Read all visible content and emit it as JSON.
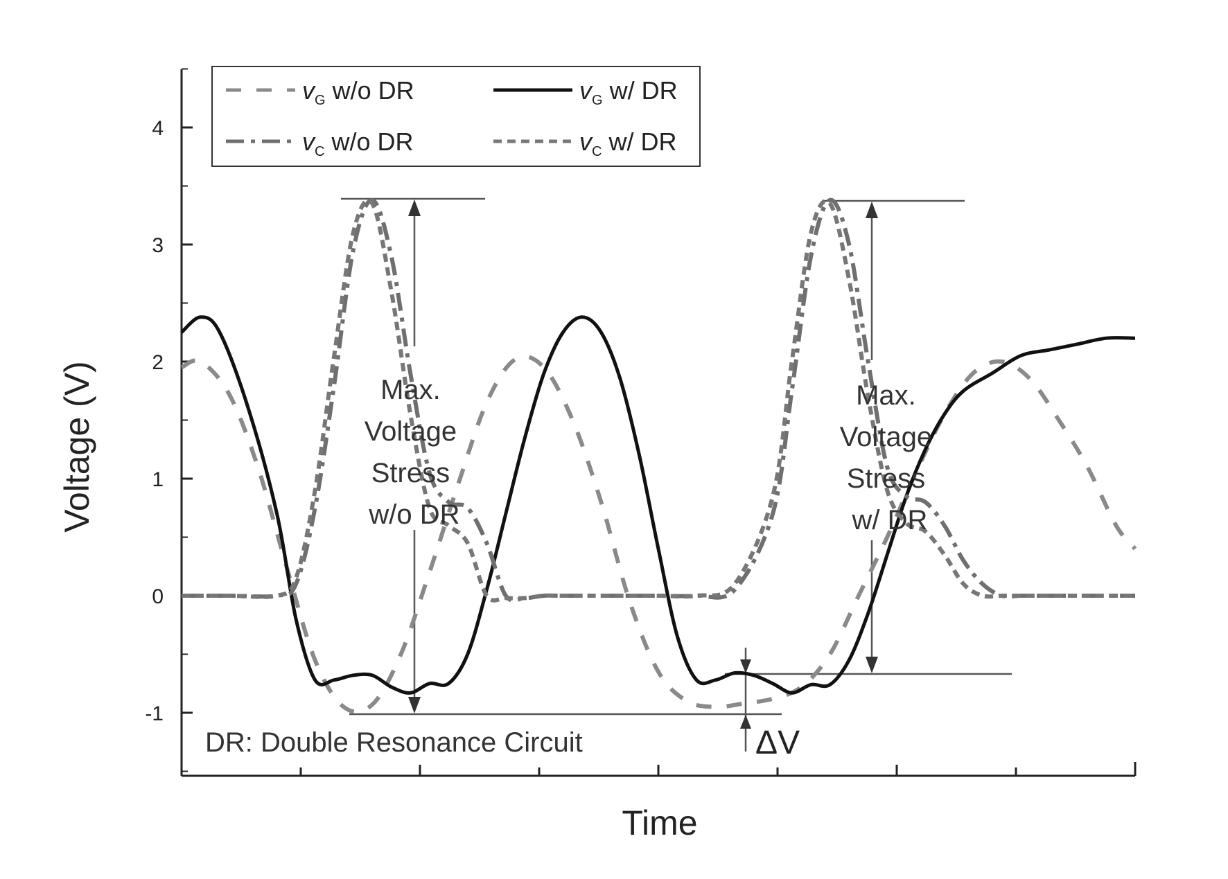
{
  "chart_data": {
    "type": "line",
    "title": "",
    "xlabel": "Time",
    "ylabel": "Voltage (V)",
    "x_tick_labels": [],
    "ylim": [
      -1.5,
      4.5
    ],
    "yticks": [
      -1,
      0,
      1,
      2,
      3,
      4
    ],
    "y_tick_labels": [
      "-1",
      "0",
      "1",
      "2",
      "3",
      "4"
    ],
    "grid": false,
    "legend_position": "top-left",
    "series": [
      {
        "name": "vG w/o DR",
        "legend_main": "v",
        "legend_sub": "G",
        "legend_rest": " w/o DR",
        "style": "dashed-gray",
        "x": [
          0.0,
          0.02,
          0.05,
          0.08,
          0.11,
          0.14,
          0.17,
          0.2,
          0.23,
          0.26,
          0.29,
          0.32,
          0.35,
          0.38,
          0.41,
          0.44,
          0.47,
          0.5,
          0.53,
          0.56,
          0.59,
          0.62,
          0.65,
          0.68,
          0.71,
          0.74,
          0.77,
          0.8,
          0.83,
          0.86,
          0.89,
          0.92,
          0.95,
          0.98,
          1.0
        ],
        "y": [
          1.95,
          2.0,
          1.72,
          1.1,
          0.25,
          -0.55,
          -0.95,
          -0.93,
          -0.5,
          0.2,
          0.95,
          1.65,
          2.02,
          1.95,
          1.5,
          0.8,
          -0.05,
          -0.65,
          -0.9,
          -0.95,
          -0.92,
          -0.88,
          -0.78,
          -0.5,
          0.0,
          0.5,
          1.05,
          1.55,
          1.9,
          2.0,
          1.85,
          1.5,
          1.1,
          0.6,
          0.4
        ]
      },
      {
        "name": "vG w/ DR",
        "legend_main": "v",
        "legend_sub": "G",
        "legend_rest": " w/ DR",
        "style": "solid-black",
        "x": [
          0.0,
          0.02,
          0.04,
          0.07,
          0.1,
          0.12,
          0.14,
          0.16,
          0.18,
          0.2,
          0.22,
          0.24,
          0.26,
          0.28,
          0.3,
          0.32,
          0.34,
          0.36,
          0.38,
          0.4,
          0.42,
          0.44,
          0.46,
          0.48,
          0.5,
          0.52,
          0.54,
          0.56,
          0.58,
          0.6,
          0.62,
          0.64,
          0.66,
          0.68,
          0.7,
          0.72,
          0.74,
          0.76,
          0.78,
          0.8,
          0.82,
          0.85,
          0.88,
          0.91,
          0.94,
          0.97,
          1.0
        ],
        "y": [
          2.25,
          2.38,
          2.25,
          1.6,
          0.7,
          -0.2,
          -0.72,
          -0.72,
          -0.68,
          -0.68,
          -0.78,
          -0.83,
          -0.75,
          -0.75,
          -0.5,
          0.05,
          0.7,
          1.35,
          1.9,
          2.25,
          2.38,
          2.25,
          1.85,
          1.2,
          0.4,
          -0.35,
          -0.72,
          -0.72,
          -0.66,
          -0.68,
          -0.75,
          -0.83,
          -0.76,
          -0.76,
          -0.55,
          -0.15,
          0.35,
          0.85,
          1.25,
          1.55,
          1.75,
          1.9,
          2.05,
          2.1,
          2.15,
          2.2,
          2.2
        ]
      },
      {
        "name": "vC w/o DR",
        "legend_main": "v",
        "legend_sub": "C",
        "legend_rest": " w/o DR",
        "style": "dashdot-gray",
        "x": [
          0.0,
          0.05,
          0.1,
          0.12,
          0.14,
          0.16,
          0.18,
          0.2,
          0.22,
          0.24,
          0.26,
          0.28,
          0.3,
          0.32,
          0.34,
          0.36,
          0.38,
          0.4,
          0.45,
          0.5,
          0.54,
          0.58,
          0.62,
          0.64,
          0.66,
          0.68,
          0.7,
          0.72,
          0.74,
          0.76,
          0.78,
          0.8,
          0.82,
          0.84,
          0.86,
          0.88,
          0.9,
          0.92,
          0.95,
          1.0
        ],
        "y": [
          0.0,
          0.0,
          0.0,
          0.1,
          0.75,
          1.8,
          2.95,
          3.38,
          2.9,
          1.9,
          1.05,
          0.8,
          0.75,
          0.45,
          0.0,
          -0.02,
          0.0,
          0.0,
          0.0,
          0.0,
          0.0,
          0.05,
          0.7,
          1.75,
          2.9,
          3.38,
          3.0,
          2.0,
          1.1,
          0.85,
          0.8,
          0.6,
          0.3,
          0.1,
          0.0,
          0.0,
          0.0,
          0.0,
          0.0,
          0.0
        ]
      },
      {
        "name": "vC w/ DR",
        "legend_main": "v",
        "legend_sub": "C",
        "legend_rest": " w/ DR",
        "style": "dotted-gray",
        "x": [
          0.0,
          0.05,
          0.1,
          0.12,
          0.14,
          0.16,
          0.18,
          0.2,
          0.22,
          0.24,
          0.26,
          0.28,
          0.3,
          0.32,
          0.34,
          0.36,
          0.38,
          0.4,
          0.45,
          0.5,
          0.54,
          0.58,
          0.62,
          0.64,
          0.66,
          0.68,
          0.7,
          0.72,
          0.74,
          0.76,
          0.78,
          0.8,
          0.82,
          0.84,
          0.86,
          0.88,
          0.9,
          0.92,
          0.95,
          1.0
        ],
        "y": [
          0.0,
          0.0,
          0.0,
          0.15,
          0.9,
          2.05,
          3.1,
          3.35,
          2.6,
          1.55,
          0.75,
          0.6,
          0.45,
          0.0,
          -0.02,
          -0.02,
          0.0,
          0.0,
          0.0,
          0.0,
          0.0,
          0.1,
          0.85,
          2.0,
          3.1,
          3.35,
          2.7,
          1.7,
          0.9,
          0.62,
          0.55,
          0.35,
          0.1,
          0.0,
          0.0,
          0.0,
          0.0,
          0.0,
          0.0,
          0.0
        ]
      }
    ],
    "annotations": [
      {
        "id": "stress-wo",
        "lines": [
          "Max.",
          "Voltage",
          "Stress",
          "w/o DR"
        ]
      },
      {
        "id": "stress-w",
        "lines": [
          "Max.",
          "Voltage",
          "Stress",
          "w/ DR"
        ]
      }
    ],
    "note": "DR: Double Resonance Circuit",
    "delta_label": "ΔV"
  }
}
